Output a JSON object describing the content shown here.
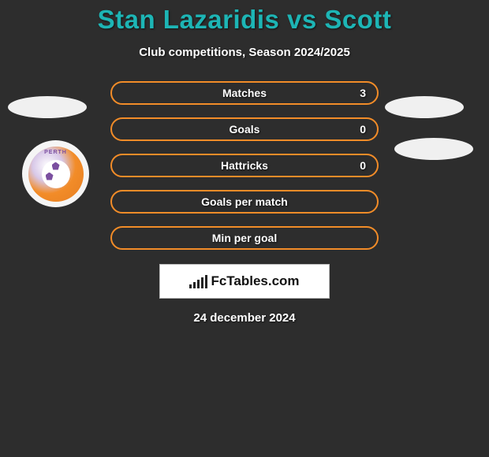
{
  "title": "Stan Lazaridis vs Scott",
  "subtitle": "Club competitions, Season 2024/2025",
  "date": "24 december 2024",
  "brand": "FcTables.com",
  "club_logo_text": "PERTH",
  "colors": {
    "background": "#2d2d2d",
    "title": "#1db5b5",
    "row_border": "#f28c28",
    "text": "#ffffff",
    "avatar_fill": "#f0f0f0"
  },
  "stats": [
    {
      "label": "Matches",
      "value": "3"
    },
    {
      "label": "Goals",
      "value": "0"
    },
    {
      "label": "Hattricks",
      "value": "0"
    },
    {
      "label": "Goals per match",
      "value": ""
    },
    {
      "label": "Min per goal",
      "value": ""
    }
  ]
}
